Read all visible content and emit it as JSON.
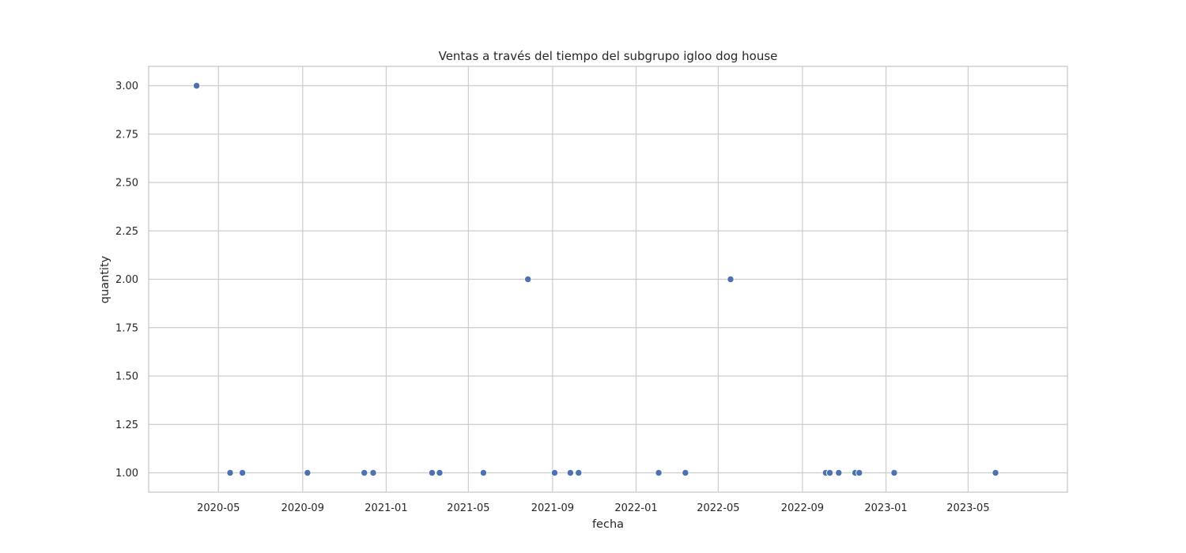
{
  "chart_data": {
    "type": "scatter",
    "title": "Ventas a través del tiempo del subgrupo igloo dog house",
    "xlabel": "fecha",
    "ylabel": "quantity",
    "x_axis_type": "date",
    "xlim": [
      "2020-01-20",
      "2023-09-23"
    ],
    "ylim": [
      0.9,
      3.1
    ],
    "x_ticks": [
      "2020-05",
      "2020-09",
      "2021-01",
      "2021-05",
      "2021-09",
      "2022-01",
      "2022-05",
      "2022-09",
      "2023-01",
      "2023-05"
    ],
    "x_tick_dates": [
      "2020-05-01",
      "2020-09-01",
      "2021-01-01",
      "2021-05-01",
      "2021-09-01",
      "2022-01-01",
      "2022-05-01",
      "2022-09-01",
      "2023-01-01",
      "2023-05-01"
    ],
    "y_ticks": [
      "1.00",
      "1.25",
      "1.50",
      "1.75",
      "2.00",
      "2.25",
      "2.50",
      "2.75",
      "3.00"
    ],
    "y_tick_values": [
      1.0,
      1.25,
      1.5,
      1.75,
      2.0,
      2.25,
      2.5,
      2.75,
      3.0
    ],
    "grid": true,
    "color": "#4c72b0",
    "points": [
      {
        "x": "2020-03-30",
        "y": 3
      },
      {
        "x": "2020-05-18",
        "y": 1
      },
      {
        "x": "2020-06-05",
        "y": 1
      },
      {
        "x": "2020-09-08",
        "y": 1
      },
      {
        "x": "2020-11-30",
        "y": 1
      },
      {
        "x": "2020-12-13",
        "y": 1
      },
      {
        "x": "2021-03-09",
        "y": 1
      },
      {
        "x": "2021-03-20",
        "y": 1
      },
      {
        "x": "2021-05-23",
        "y": 1
      },
      {
        "x": "2021-07-27",
        "y": 2
      },
      {
        "x": "2021-09-04",
        "y": 1
      },
      {
        "x": "2021-09-27",
        "y": 1
      },
      {
        "x": "2021-10-09",
        "y": 1
      },
      {
        "x": "2022-02-03",
        "y": 1
      },
      {
        "x": "2022-03-14",
        "y": 1
      },
      {
        "x": "2022-05-19",
        "y": 2
      },
      {
        "x": "2022-10-05",
        "y": 1
      },
      {
        "x": "2022-10-11",
        "y": 1
      },
      {
        "x": "2022-10-24",
        "y": 1
      },
      {
        "x": "2022-11-17",
        "y": 1
      },
      {
        "x": "2022-11-23",
        "y": 1
      },
      {
        "x": "2023-01-13",
        "y": 1
      },
      {
        "x": "2023-06-10",
        "y": 1
      }
    ]
  }
}
